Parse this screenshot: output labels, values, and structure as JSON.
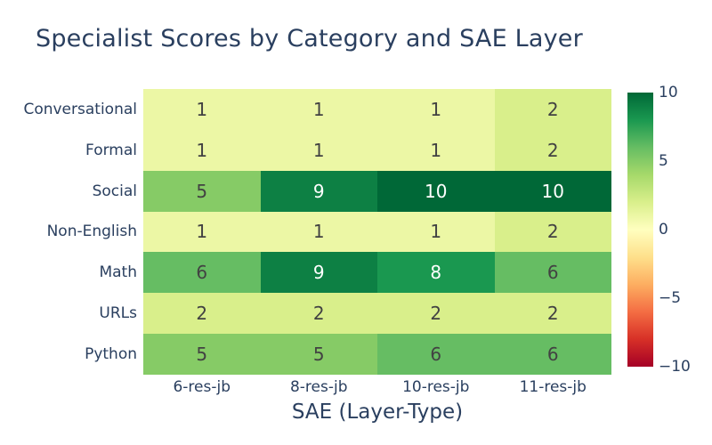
{
  "title": "Specialist Scores by Category and SAE Layer",
  "colors": {
    "font": "#2a3f5f",
    "background": "#ffffff",
    "cell_text_dark": "#424242",
    "cell_text_light": "#ffffff"
  },
  "chart_data": {
    "type": "heatmap",
    "title": "Specialist Scores by Category and SAE Layer",
    "xlabel": "SAE (Layer-Type)",
    "ylabel": "",
    "x_categories": [
      "6-res-jb",
      "8-res-jb",
      "10-res-jb",
      "11-res-jb"
    ],
    "y_categories": [
      "Conversational",
      "Formal",
      "Social",
      "Non-English",
      "Math",
      "URLs",
      "Python"
    ],
    "values": [
      [
        1,
        1,
        1,
        2
      ],
      [
        1,
        1,
        1,
        2
      ],
      [
        5,
        9,
        10,
        10
      ],
      [
        1,
        1,
        1,
        2
      ],
      [
        6,
        9,
        8,
        6
      ],
      [
        2,
        2,
        2,
        2
      ],
      [
        5,
        5,
        6,
        6
      ]
    ],
    "zmin": -10,
    "zmax": 10,
    "grid": false,
    "legend_position": "right-colorbar",
    "colorscale_name": "RdYlGn",
    "colorscale_stops": [
      "#a50026",
      "#d73027",
      "#f46d43",
      "#fdae61",
      "#fee08b",
      "#ffffbf",
      "#d9ef8b",
      "#a6d96a",
      "#66bd63",
      "#1a9850",
      "#006837"
    ],
    "value_colors": {
      "1": "#ecf7a5",
      "2": "#d9ef8b",
      "5": "#86cb66",
      "6": "#66bd63",
      "8": "#1a9850",
      "9": "#0d8044",
      "10": "#006837"
    },
    "white_text_threshold": 7,
    "colorbar_ticks": [
      {
        "label": "10",
        "value": 10
      },
      {
        "label": "5",
        "value": 5
      },
      {
        "label": "0",
        "value": 0
      },
      {
        "label": "−5",
        "value": -5
      },
      {
        "label": "−10",
        "value": -10
      }
    ]
  }
}
